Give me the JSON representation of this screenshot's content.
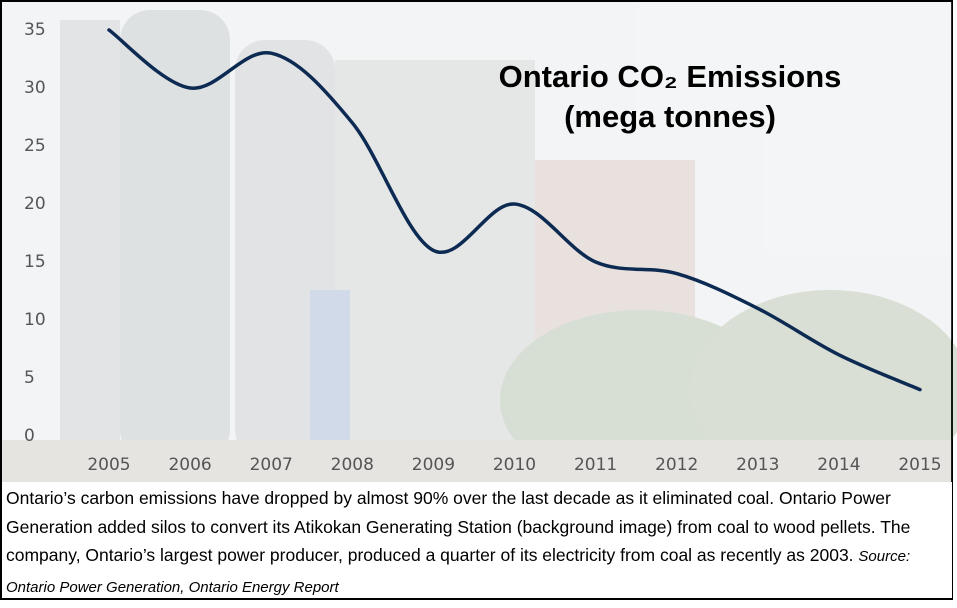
{
  "chart_data": {
    "type": "line",
    "title": "Ontario CO₂ Emissions",
    "subtitle": "(mega tonnes)",
    "categories": [
      "2005",
      "2006",
      "2007",
      "2008",
      "2009",
      "2010",
      "2011",
      "2012",
      "2013",
      "2014",
      "2015"
    ],
    "values": [
      35,
      30,
      33,
      27,
      16,
      20,
      15,
      14,
      11,
      7,
      4
    ],
    "color": "#0d2a52",
    "ylim": [
      0,
      35
    ],
    "yticks": [
      0,
      5,
      10,
      15,
      20,
      25,
      30,
      35
    ],
    "grid": false,
    "caption": "Ontario’s carbon emissions have dropped by almost 90% over the last decade as it eliminated coal. Ontario Power Generation added silos to convert its Atikokan Generating Station (background image) from coal to wood pellets. The company, Ontario’s largest power producer, produced a quarter of its electricity from coal as recently as 2003.",
    "source": "Source: Ontario Power  Generation, Ontario Energy Report"
  }
}
